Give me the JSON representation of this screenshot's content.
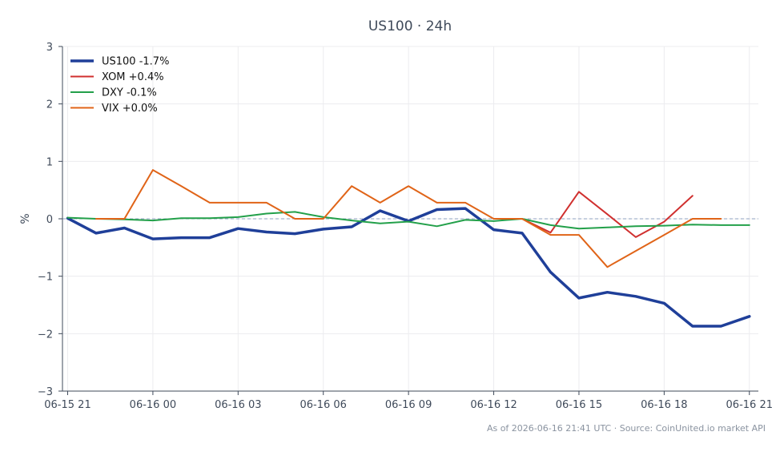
{
  "chart_data": {
    "type": "line",
    "title": "US100 · 24h",
    "ylabel": "%",
    "xlabel": "",
    "ylim": [
      -3,
      3
    ],
    "yticks": [
      -3,
      -2,
      -1,
      0,
      1,
      2,
      3
    ],
    "ytick_labels": [
      "−3",
      "−2",
      "−1",
      "0",
      "1",
      "2",
      "3"
    ],
    "xlim": [
      0,
      24.5
    ],
    "xticks": [
      0,
      3,
      6,
      9,
      12,
      15,
      18,
      21,
      24
    ],
    "xtick_labels": [
      "06-15 21",
      "06-16 00",
      "06-16 03",
      "06-16 06",
      "06-16 09",
      "06-16 12",
      "06-16 15",
      "06-16 18",
      "06-16 21"
    ],
    "grid": true,
    "zero_line": true,
    "legend_position": "top-left",
    "series": [
      {
        "name": "US100 -1.7%",
        "color": "#1f3f99",
        "width": 3.5,
        "x": [
          0,
          1,
          2,
          3,
          4,
          5,
          6,
          7,
          8,
          9,
          10,
          11,
          12,
          13,
          14,
          15,
          16,
          17,
          18,
          19,
          20,
          21,
          22,
          23,
          24
        ],
        "values": [
          0.01,
          -0.25,
          -0.16,
          -0.35,
          -0.33,
          -0.33,
          -0.17,
          -0.23,
          -0.26,
          -0.18,
          -0.14,
          0.14,
          -0.04,
          0.16,
          0.18,
          -0.19,
          -0.25,
          -0.93,
          -1.38,
          -1.28,
          -1.35,
          -1.47,
          -1.87,
          -1.87,
          -1.7
        ]
      },
      {
        "name": "XOM +0.4%",
        "color": "#d0302f",
        "width": 2,
        "x": [
          16,
          17,
          18,
          19,
          20,
          21,
          22
        ],
        "values": [
          0.0,
          -0.24,
          0.47,
          0.08,
          -0.32,
          -0.05,
          0.4
        ]
      },
      {
        "name": "DXY -0.1%",
        "color": "#23a04a",
        "width": 2,
        "x": [
          0,
          1,
          2,
          3,
          4,
          5,
          6,
          7,
          8,
          9,
          10,
          11,
          12,
          13,
          14,
          15,
          16,
          17,
          18,
          19,
          20,
          21,
          22,
          23,
          24
        ],
        "values": [
          0.02,
          0.0,
          -0.01,
          -0.03,
          0.01,
          0.01,
          0.03,
          0.09,
          0.12,
          0.03,
          -0.03,
          -0.08,
          -0.05,
          -0.13,
          -0.02,
          -0.04,
          0.0,
          -0.11,
          -0.17,
          -0.15,
          -0.13,
          -0.12,
          -0.1,
          -0.11,
          -0.11
        ]
      },
      {
        "name": "VIX +0.0%",
        "color": "#e06418",
        "width": 2,
        "x": [
          1,
          2,
          3,
          4,
          5,
          6,
          7,
          8,
          9,
          10,
          11,
          12,
          13,
          14,
          15,
          16,
          17,
          18,
          19,
          20,
          21,
          22,
          23
        ],
        "values": [
          0.0,
          0.0,
          0.85,
          0.57,
          0.28,
          0.28,
          0.28,
          0.0,
          0.0,
          0.57,
          0.28,
          0.57,
          0.28,
          0.28,
          0.0,
          0.0,
          -0.28,
          -0.28,
          -0.84,
          -0.56,
          -0.28,
          0.0,
          0.0
        ]
      }
    ]
  },
  "footer": "As of 2026-06-16 21:41 UTC · Source: CoinUnited.io market API"
}
